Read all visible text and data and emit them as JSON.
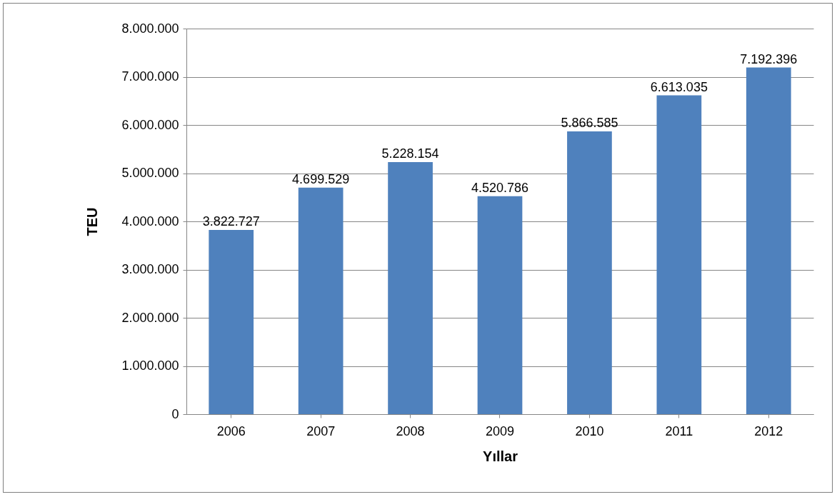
{
  "chart_data": {
    "type": "bar",
    "categories": [
      "2006",
      "2007",
      "2008",
      "2009",
      "2010",
      "2011",
      "2012"
    ],
    "values": [
      3822727,
      4699529,
      5228154,
      4520786,
      5866585,
      6613035,
      7192396
    ],
    "value_labels": [
      "3.822.727",
      "4.699.529",
      "5.228.154",
      "4.520.786",
      "5.866.585",
      "6.613.035",
      "7.192.396"
    ],
    "color": "#4f81bd",
    "xlabel": "Yıllar",
    "ylabel": "TEU",
    "ylim": [
      0,
      8000000
    ],
    "yticks": [
      {
        "value": 0,
        "label": "0"
      },
      {
        "value": 1000000,
        "label": "1.000.000"
      },
      {
        "value": 2000000,
        "label": "2.000.000"
      },
      {
        "value": 3000000,
        "label": "3.000.000"
      },
      {
        "value": 4000000,
        "label": "4.000.000"
      },
      {
        "value": 5000000,
        "label": "5.000.000"
      },
      {
        "value": 6000000,
        "label": "6.000.000"
      },
      {
        "value": 7000000,
        "label": "7.000.000"
      },
      {
        "value": 8000000,
        "label": "8.000.000"
      }
    ],
    "grid": "y"
  }
}
